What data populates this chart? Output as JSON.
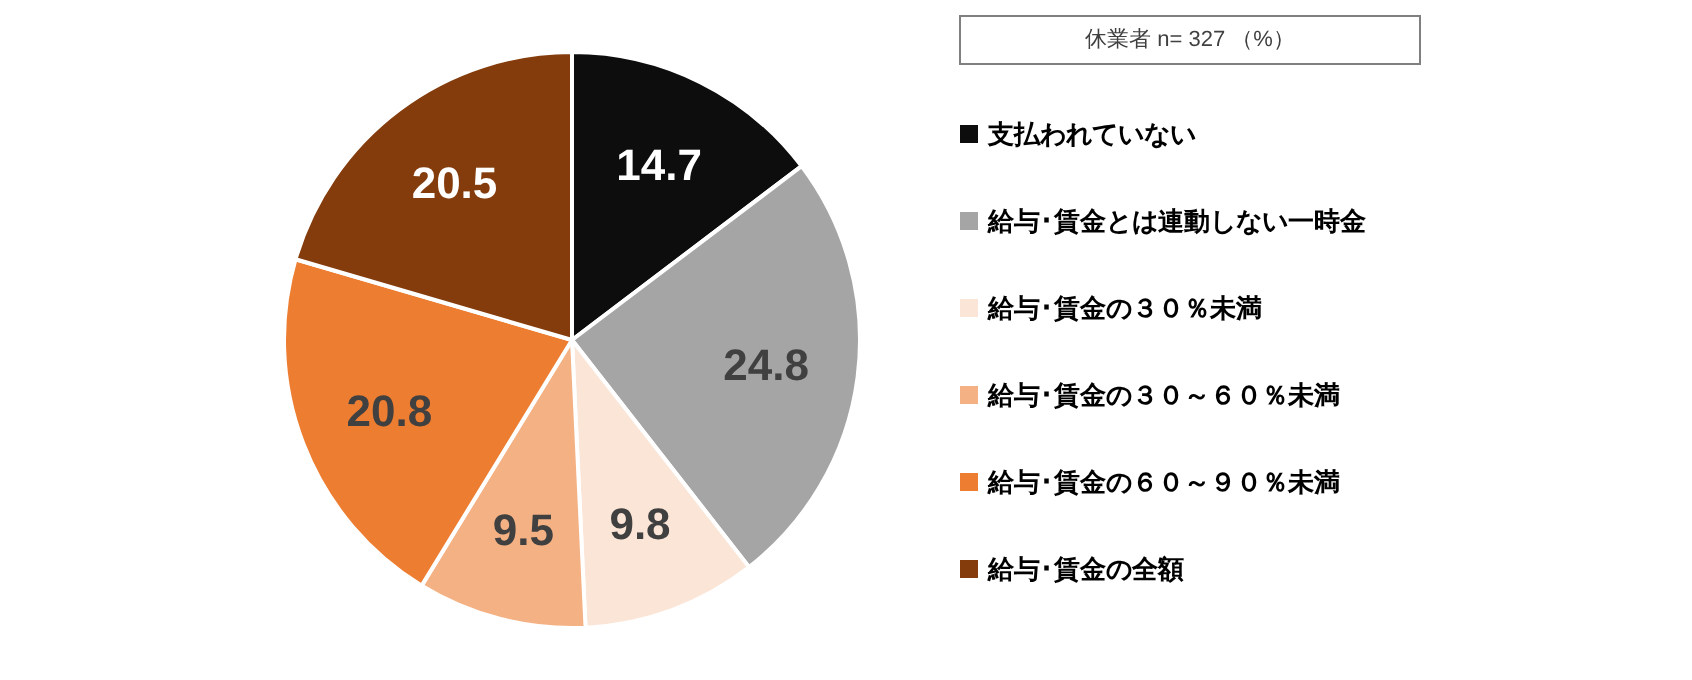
{
  "chart_data": {
    "type": "pie",
    "legend_title": "休業者 n= 327 （%）",
    "categories": [
      "支払われていない",
      "給与･賃金とは連動しない一時金",
      "給与･賃金の３０％未満",
      "給与･賃金の３０～６０％未満",
      "給与･賃金の６０～９０％未満",
      "給与･賃金の全額"
    ],
    "values": [
      14.7,
      24.8,
      9.8,
      9.5,
      20.8,
      20.5
    ],
    "colors": [
      "#0d0d0d",
      "#a5a5a5",
      "#fbe5d6",
      "#f4b183",
      "#ed7d31",
      "#843c0c"
    ],
    "data_labels": true,
    "legend": "right"
  }
}
